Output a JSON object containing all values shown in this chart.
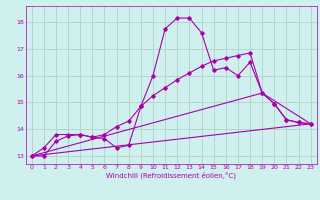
{
  "bg_color": "#cff0ee",
  "grid_color": "#aaccbb",
  "line_color": "#aa00aa",
  "marker_color": "#aa00aa",
  "xlabel": "Windchill (Refroidissement éolien,°C)",
  "xlabel_color": "#aa00aa",
  "xlim": [
    -0.5,
    23.5
  ],
  "ylim": [
    12.7,
    18.6
  ],
  "yticks": [
    13,
    14,
    15,
    16,
    17,
    18
  ],
  "xticks": [
    0,
    1,
    2,
    3,
    4,
    5,
    6,
    7,
    8,
    9,
    10,
    11,
    12,
    13,
    14,
    15,
    16,
    17,
    18,
    19,
    20,
    21,
    22,
    23
  ],
  "series1_x": [
    0,
    1,
    2,
    3,
    4,
    5,
    6,
    7,
    8,
    9,
    10,
    11,
    12,
    13,
    14,
    15,
    16,
    17,
    18,
    19,
    20,
    21,
    22,
    23
  ],
  "series1_y": [
    13.0,
    13.0,
    13.55,
    13.75,
    13.8,
    13.7,
    13.65,
    13.3,
    13.4,
    14.85,
    16.0,
    17.75,
    18.15,
    18.15,
    17.6,
    16.2,
    16.3,
    16.0,
    16.5,
    15.35,
    14.95,
    14.35,
    14.25,
    14.2
  ],
  "series2_x": [
    0,
    1,
    2,
    3,
    4,
    5,
    6,
    7,
    8,
    9,
    10,
    11,
    12,
    13,
    14,
    15,
    16,
    17,
    18,
    19,
    20,
    21,
    22,
    23
  ],
  "series2_y": [
    13.0,
    13.3,
    13.8,
    13.8,
    13.8,
    13.7,
    13.8,
    14.1,
    14.3,
    14.85,
    15.25,
    15.55,
    15.85,
    16.1,
    16.35,
    16.55,
    16.65,
    16.75,
    16.85,
    15.35,
    14.95,
    14.35,
    14.25,
    14.2
  ],
  "series3_x": [
    0,
    23
  ],
  "series3_y": [
    13.0,
    14.2
  ],
  "series4_x": [
    0,
    19,
    23
  ],
  "series4_y": [
    13.0,
    15.35,
    14.2
  ]
}
